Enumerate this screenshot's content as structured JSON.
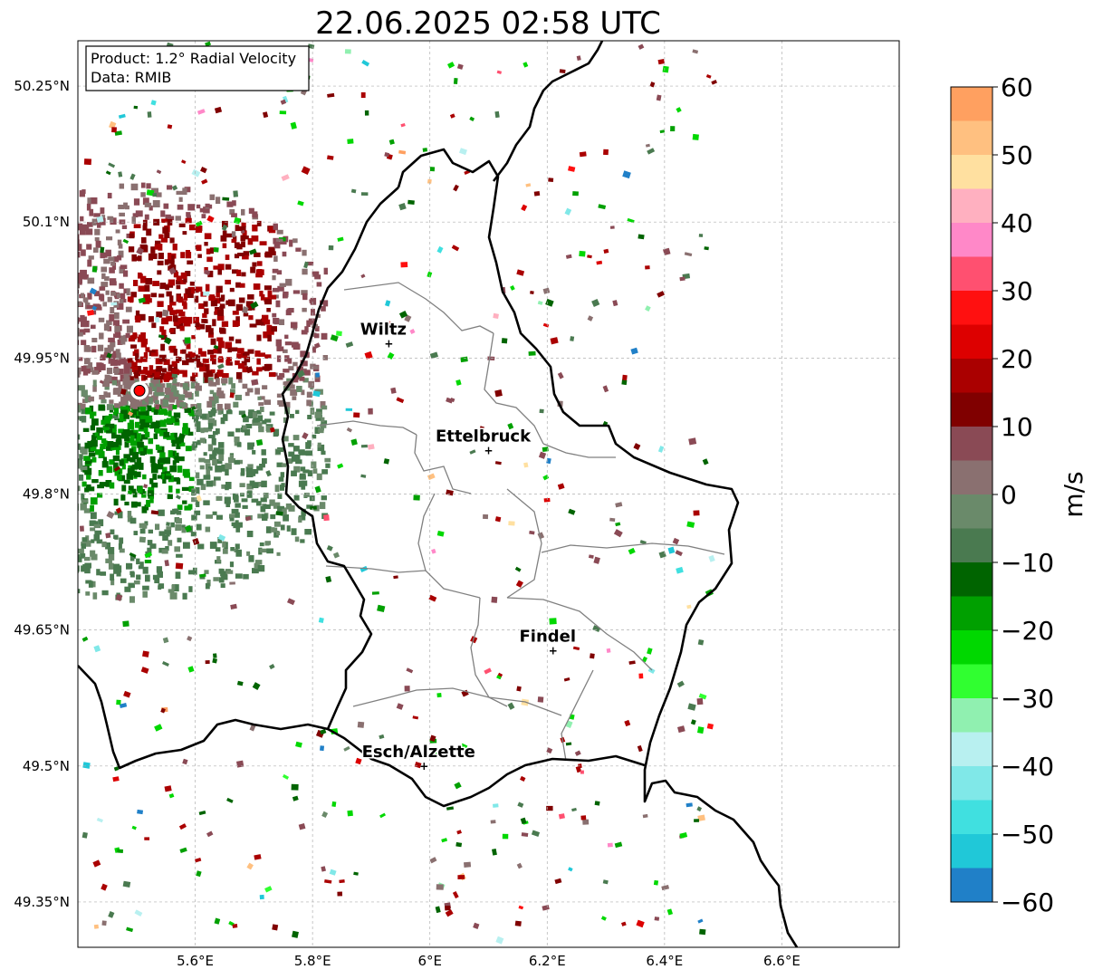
{
  "title": "22.06.2025 02:58 UTC",
  "info_box": {
    "product": "Product: 1.2° Radial Velocity",
    "source": "Data: RMIB"
  },
  "map": {
    "lon_range": [
      5.4,
      6.8
    ],
    "lat_range": [
      49.3,
      50.3
    ],
    "gridlines": true,
    "lat_ticks": [
      {
        "value": 50.25,
        "label": "50.25°N"
      },
      {
        "value": 50.1,
        "label": "50.1°N"
      },
      {
        "value": 49.95,
        "label": "49.95°N"
      },
      {
        "value": 49.8,
        "label": "49.8°N"
      },
      {
        "value": 49.65,
        "label": "49.65°N"
      },
      {
        "value": 49.5,
        "label": "49.5°N"
      },
      {
        "value": 49.35,
        "label": "49.35°N"
      }
    ],
    "lon_ticks": [
      {
        "value": 5.6,
        "label": "5.6°E"
      },
      {
        "value": 5.8,
        "label": "5.8°E"
      },
      {
        "value": 6.0,
        "label": "6°E"
      },
      {
        "value": 6.2,
        "label": "6.2°E"
      },
      {
        "value": 6.4,
        "label": "6.4°E"
      },
      {
        "value": 6.6,
        "label": "6.6°E"
      }
    ],
    "radar_site": {
      "lon": 5.505,
      "lat": 49.914
    },
    "places": [
      {
        "name": "Wiltz",
        "lon": 5.93,
        "lat": 49.966
      },
      {
        "name": "Ettelbruck",
        "lon": 6.1,
        "lat": 49.848
      },
      {
        "name": "Findel",
        "lon": 6.21,
        "lat": 49.627
      },
      {
        "name": "Esch/Alzette",
        "lon": 5.99,
        "lat": 49.5
      }
    ]
  },
  "colorbar": {
    "label": "m/s",
    "range": [
      -60,
      60
    ],
    "ticks": [
      {
        "value": 60,
        "label": "60"
      },
      {
        "value": 50,
        "label": "50"
      },
      {
        "value": 40,
        "label": "40"
      },
      {
        "value": 30,
        "label": "30"
      },
      {
        "value": 20,
        "label": "20"
      },
      {
        "value": 10,
        "label": "10"
      },
      {
        "value": 0,
        "label": "0"
      },
      {
        "value": -10,
        "label": "−10"
      },
      {
        "value": -20,
        "label": "−20"
      },
      {
        "value": -30,
        "label": "−30"
      },
      {
        "value": -40,
        "label": "−40"
      },
      {
        "value": -50,
        "label": "−50"
      },
      {
        "value": -60,
        "label": "−60"
      }
    ],
    "bands": [
      {
        "from": 55,
        "to": 60,
        "color": "#ffa060"
      },
      {
        "from": 50,
        "to": 55,
        "color": "#ffc080"
      },
      {
        "from": 45,
        "to": 50,
        "color": "#ffe0a0"
      },
      {
        "from": 40,
        "to": 45,
        "color": "#ffb0c0"
      },
      {
        "from": 35,
        "to": 40,
        "color": "#ff88c8"
      },
      {
        "from": 30,
        "to": 35,
        "color": "#ff5070"
      },
      {
        "from": 25,
        "to": 30,
        "color": "#ff1010"
      },
      {
        "from": 20,
        "to": 25,
        "color": "#dd0000"
      },
      {
        "from": 15,
        "to": 20,
        "color": "#aa0000"
      },
      {
        "from": 10,
        "to": 15,
        "color": "#800000"
      },
      {
        "from": 5,
        "to": 10,
        "color": "#8a4a55"
      },
      {
        "from": 0,
        "to": 5,
        "color": "#8a7070"
      },
      {
        "from": -5,
        "to": 0,
        "color": "#6a8a6a"
      },
      {
        "from": -10,
        "to": -5,
        "color": "#4a7a50"
      },
      {
        "from": -15,
        "to": -10,
        "color": "#006400"
      },
      {
        "from": -20,
        "to": -15,
        "color": "#00a000"
      },
      {
        "from": -25,
        "to": -20,
        "color": "#00d800"
      },
      {
        "from": -30,
        "to": -25,
        "color": "#30ff30"
      },
      {
        "from": -35,
        "to": -30,
        "color": "#90f0b0"
      },
      {
        "from": -40,
        "to": -35,
        "color": "#b8f0f0"
      },
      {
        "from": -45,
        "to": -40,
        "color": "#80e8e8"
      },
      {
        "from": -50,
        "to": -45,
        "color": "#40e0e0"
      },
      {
        "from": -55,
        "to": -50,
        "color": "#20c8d8"
      },
      {
        "from": -60,
        "to": -55,
        "color": "#2080c8"
      }
    ]
  },
  "colors": {
    "border": "#000000",
    "admin_border": "#808080",
    "grid": "#b0b0b0",
    "site_marker": "#ff0000"
  }
}
